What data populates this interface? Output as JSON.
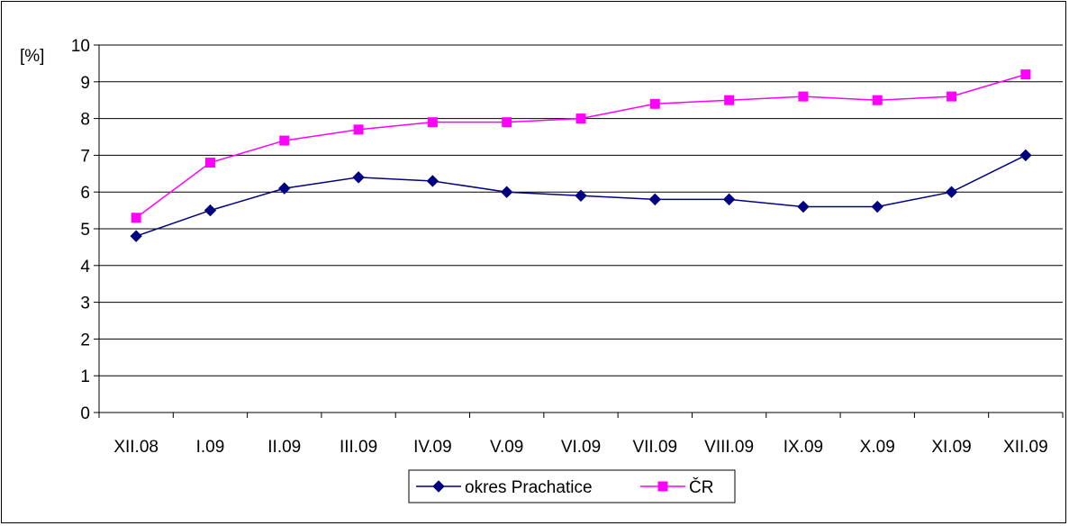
{
  "chart_data": {
    "type": "line",
    "title": "",
    "xlabel": "",
    "ylabel": "[%]",
    "ylim": [
      0,
      10
    ],
    "y_ticks": [
      "0",
      "1",
      "2",
      "3",
      "4",
      "5",
      "6",
      "7",
      "8",
      "9",
      "10"
    ],
    "categories": [
      "XII.08",
      "I.09",
      "II.09",
      "III.09",
      "IV.09",
      "V.09",
      "VI.09",
      "VII.09",
      "VIII.09",
      "IX.09",
      "X.09",
      "XI.09",
      "XII.09"
    ],
    "series": [
      {
        "name": "okres Prachatice",
        "color": "#000080",
        "marker": "diamond",
        "values": [
          4.8,
          5.5,
          6.1,
          6.4,
          6.3,
          6.0,
          5.9,
          5.8,
          5.8,
          5.6,
          5.6,
          6.0,
          7.0
        ]
      },
      {
        "name": "ČR",
        "color": "#FF00FF",
        "marker": "square",
        "values": [
          5.3,
          6.8,
          7.4,
          7.7,
          7.9,
          7.9,
          8.0,
          8.4,
          8.5,
          8.6,
          8.5,
          8.6,
          9.2
        ]
      }
    ],
    "grid": "horizontal",
    "legend_position": "bottom"
  }
}
